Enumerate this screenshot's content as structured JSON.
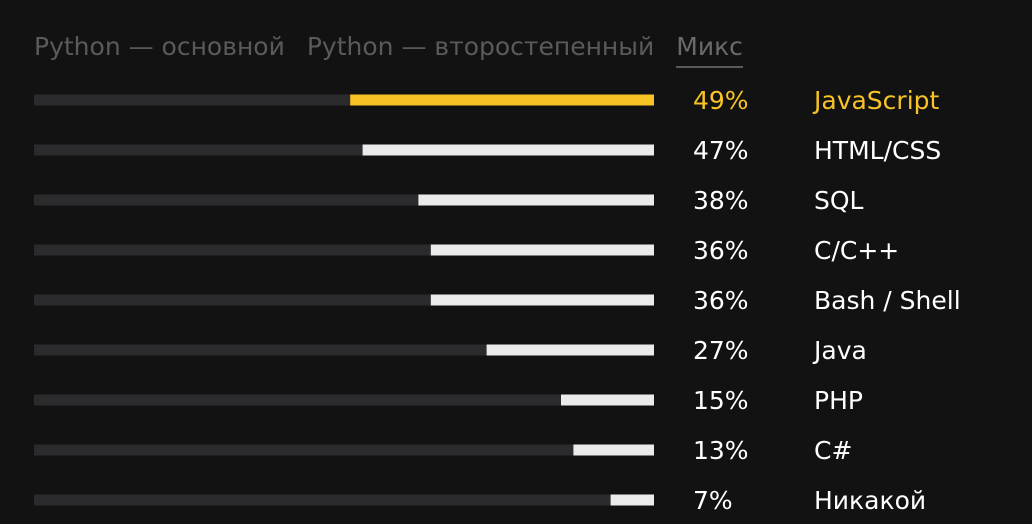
{
  "tabs": [
    {
      "label": "Python — основной",
      "active": false
    },
    {
      "label": "Python — второстепенный",
      "active": false
    },
    {
      "label": "Микс",
      "active": true
    }
  ],
  "colors": {
    "track": "#2b2b2e",
    "fill": "#ebebeb",
    "highlight": "#f7c325",
    "text": "#ffffff"
  },
  "chart_data": {
    "type": "bar",
    "orientation": "horizontal",
    "ylim": [
      0,
      100
    ],
    "highlighted_category": "JavaScript",
    "categories": [
      "JavaScript",
      "HTML/CSS",
      "SQL",
      "C/C++",
      "Bash / Shell",
      "Java",
      "PHP",
      "C#",
      "Никакой"
    ],
    "values": [
      49,
      47,
      38,
      36,
      36,
      27,
      15,
      13,
      7
    ],
    "value_labels": [
      "49%",
      "47%",
      "38%",
      "36%",
      "36%",
      "27%",
      "15%",
      "13%",
      "7%"
    ]
  }
}
